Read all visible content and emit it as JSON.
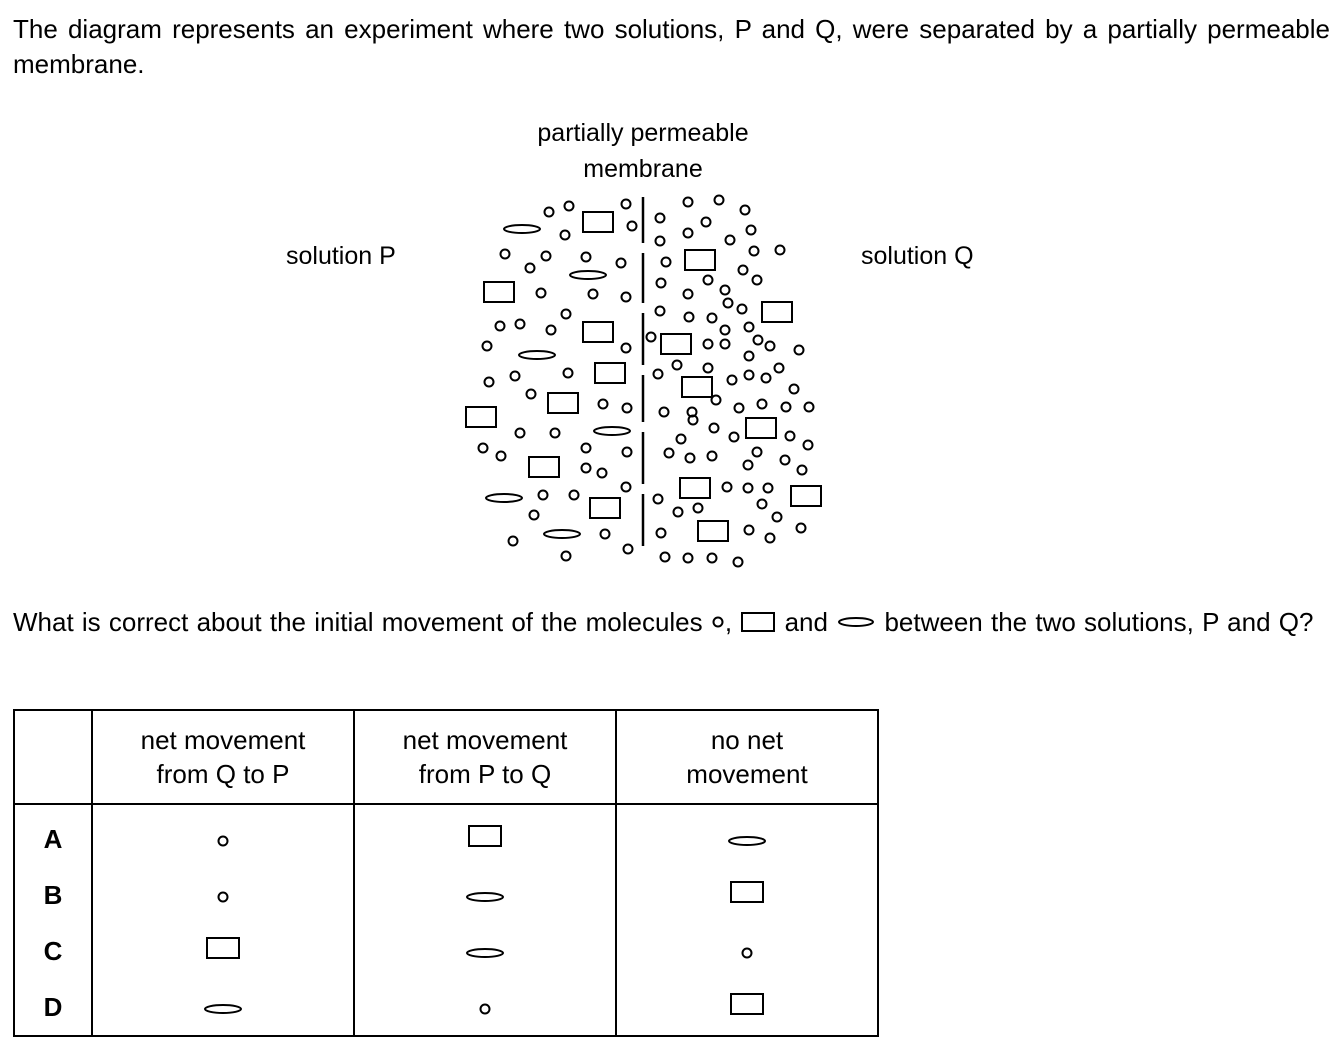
{
  "intro": "The diagram represents an experiment where two solutions, P and Q, were separated by a partially permeable membrane.",
  "diagram": {
    "membrane_label_line1": "partially permeable",
    "membrane_label_line2": "membrane",
    "solution_p_label": "solution P",
    "solution_q_label": "solution Q"
  },
  "question": {
    "part1": "What is correct about the initial movement of the molecules",
    "sep1": ",",
    "part2": "and",
    "part3": "between the two solutions, P and Q?"
  },
  "table": {
    "headers": [
      "",
      "net movement\nfrom Q to P",
      "net movement\nfrom P to Q",
      "no net\nmovement"
    ],
    "rows": [
      {
        "option": "A",
        "cells": [
          "circle-icon",
          "rectangle-icon",
          "ellipse-icon"
        ]
      },
      {
        "option": "B",
        "cells": [
          "circle-icon",
          "ellipse-icon",
          "rectangle-icon"
        ]
      },
      {
        "option": "C",
        "cells": [
          "rectangle-icon",
          "ellipse-icon",
          "circle-icon"
        ]
      },
      {
        "option": "D",
        "cells": [
          "ellipse-icon",
          "circle-icon",
          "rectangle-icon"
        ]
      }
    ]
  }
}
